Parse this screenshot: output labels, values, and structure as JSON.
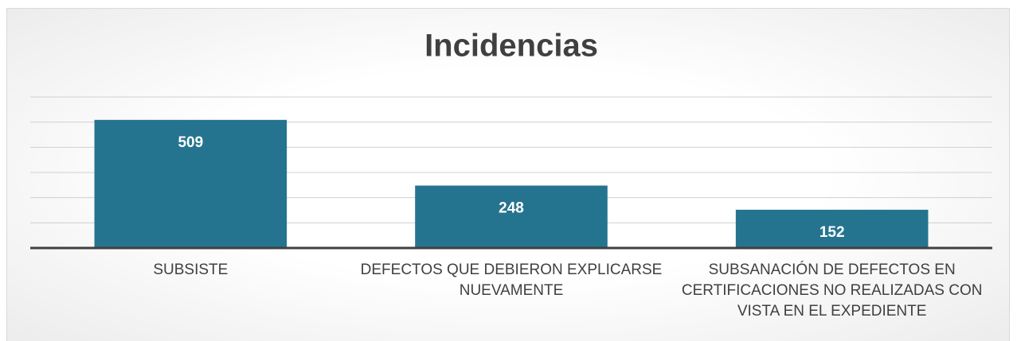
{
  "chart_data": {
    "type": "bar",
    "title": "Incidencias",
    "categories": [
      "SUBSISTE",
      "DEFECTOS QUE DEBIERON EXPLICARSE NUEVAMENTE",
      "SUBSANACIÓN DE DEFECTOS EN CERTIFICACIONES NO REALIZADAS CON VISTA EN EL EXPEDIENTE"
    ],
    "values": [
      509,
      248,
      152
    ],
    "color": "#25748f",
    "ylim": [
      0,
      600
    ],
    "yticks": [
      0,
      100,
      200,
      300,
      400,
      500,
      600
    ],
    "grid": true
  }
}
